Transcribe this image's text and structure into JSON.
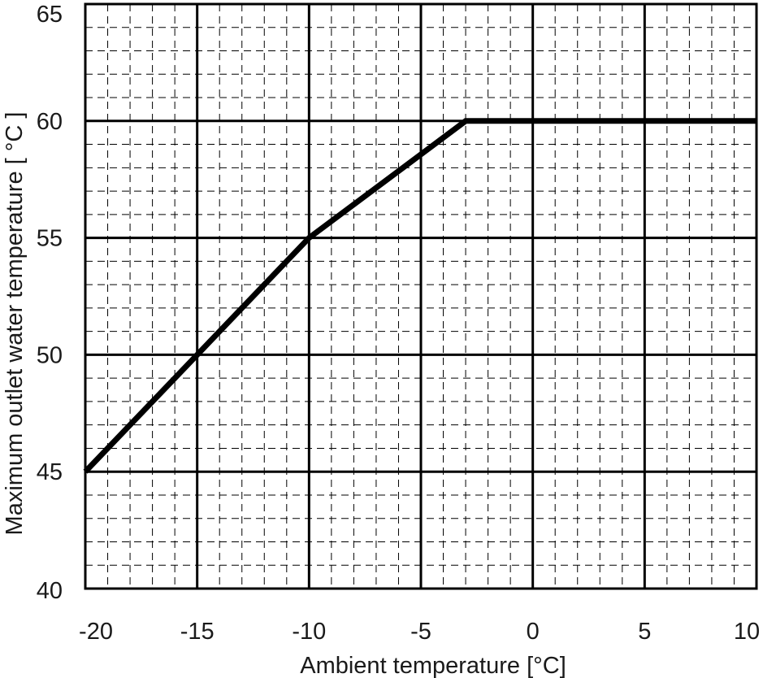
{
  "chart_data": {
    "type": "line",
    "title": "",
    "xlabel": "Ambient temperature [°C]",
    "ylabel": "Maximum outlet water temperature [ °C ]",
    "xlim": [
      -20,
      10
    ],
    "ylim": [
      40,
      65
    ],
    "x_ticks": [
      -20,
      -15,
      -10,
      -5,
      0,
      5,
      10
    ],
    "y_ticks": [
      40,
      45,
      50,
      55,
      60,
      65
    ],
    "x_tick_labels": [
      "-20",
      "-15",
      "-10",
      "-5",
      "0",
      "5",
      "10"
    ],
    "y_tick_labels": [
      "40",
      "45",
      "50",
      "55",
      "60",
      "65"
    ],
    "x_minor_step": 1,
    "y_minor_step": 1,
    "grid": true,
    "legend": "none",
    "series": [
      {
        "x": [
          -20,
          -15,
          -10,
          -3,
          10
        ],
        "y": [
          45,
          50,
          55,
          60,
          60
        ]
      }
    ]
  },
  "colors": {
    "background": "#ffffff",
    "major_grid": "#000000",
    "minor_grid": "#000000",
    "line": "#000000",
    "text": "#1a1a1a"
  }
}
